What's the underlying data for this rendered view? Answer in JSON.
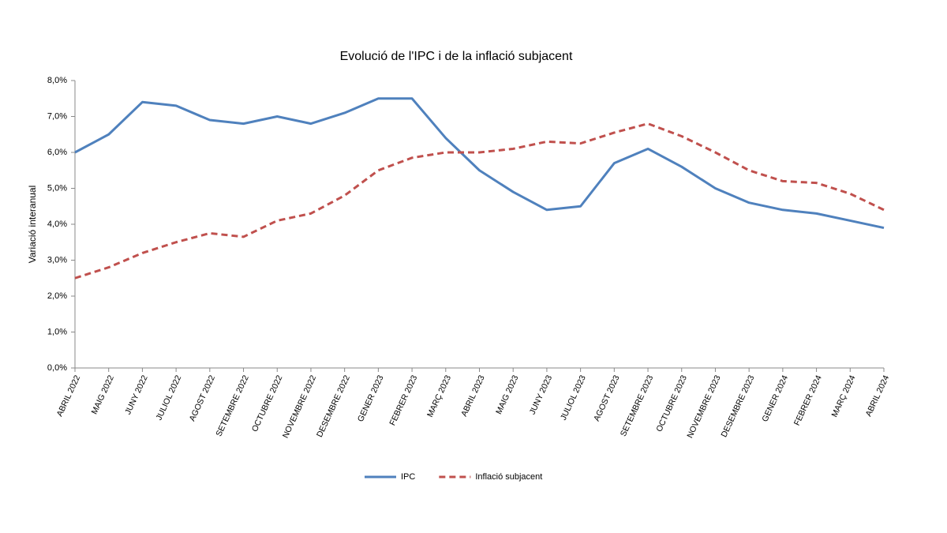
{
  "chart_data": {
    "type": "line",
    "title": "Evolució de l'IPC i de la inflació subjacent",
    "y_label": "Variació interanual",
    "categories": [
      "ABRIL 2022",
      "MAIG 2022",
      "JUNY 2022",
      "JULIOL 2022",
      "AGOST 2022",
      "SETEMBRE 2022",
      "OCTUBRE 2022",
      "NOVEMBRE 2022",
      "DESEMBRE 2022",
      "GENER 2023",
      "FEBRER 2023",
      "MARÇ 2023",
      "ABRIL 2023",
      "MAIG 2023",
      "JUNY 2023",
      "JULIOL 2023",
      "AGOST 2023",
      "SETEMBRE 2023",
      "OCTUBRE 2023",
      "NOVEMBRE 2023",
      "DESEMBRE 2023",
      "GENER 2024",
      "FEBRER 2024",
      "MARÇ 2024",
      "ABRIL 2024"
    ],
    "series": [
      {
        "name": "IPC",
        "color": "#4f81bd",
        "dashed": false,
        "values": [
          6.0,
          6.5,
          7.4,
          7.3,
          6.9,
          6.8,
          7.0,
          6.8,
          7.1,
          7.5,
          7.5,
          6.4,
          5.5,
          4.9,
          4.4,
          4.5,
          5.7,
          6.1,
          5.6,
          5.0,
          4.6,
          4.4,
          4.3,
          4.1,
          3.9
        ]
      },
      {
        "name": "Inflació subjacent",
        "color": "#c0504d",
        "dashed": true,
        "values": [
          2.5,
          2.8,
          3.2,
          3.5,
          3.75,
          3.65,
          4.1,
          4.3,
          4.8,
          5.5,
          5.85,
          6.0,
          6.0,
          6.1,
          6.3,
          6.25,
          6.55,
          6.8,
          6.45,
          6.0,
          5.5,
          5.2,
          5.15,
          4.85,
          4.4
        ]
      }
    ],
    "ylim": [
      0,
      8
    ],
    "yticks": [
      {
        "value": 0,
        "label": "0,0%"
      },
      {
        "value": 1,
        "label": "1,0%"
      },
      {
        "value": 2,
        "label": "2,0%"
      },
      {
        "value": 3,
        "label": "3,0%"
      },
      {
        "value": 4,
        "label": "4,0%"
      },
      {
        "value": 5,
        "label": "5,0%"
      },
      {
        "value": 6,
        "label": "6,0%"
      },
      {
        "value": 7,
        "label": "7,0%"
      },
      {
        "value": 8,
        "label": "8,0%"
      }
    ],
    "grid": false,
    "legend": "bottom"
  }
}
